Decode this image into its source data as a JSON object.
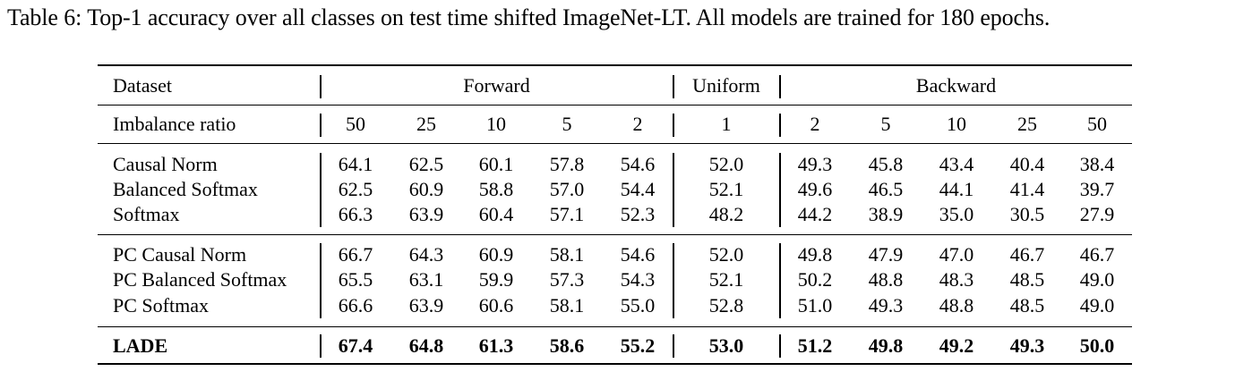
{
  "caption": "Table 6: Top-1 accuracy over all classes on test time shifted ImageNet-LT. All models are trained for 180 epochs.",
  "header": {
    "dataset_label": "Dataset",
    "groups": [
      "Forward",
      "Uniform",
      "Backward"
    ],
    "imbalance_label": "Imbalance ratio",
    "ratios": [
      "50",
      "25",
      "10",
      "5",
      "2",
      "1",
      "2",
      "5",
      "10",
      "25",
      "50"
    ]
  },
  "rows": [
    {
      "name": "Causal Norm",
      "values": [
        "64.1",
        "62.5",
        "60.1",
        "57.8",
        "54.6",
        "52.0",
        "49.3",
        "45.8",
        "43.4",
        "40.4",
        "38.4"
      ]
    },
    {
      "name": "Balanced Softmax",
      "values": [
        "62.5",
        "60.9",
        "58.8",
        "57.0",
        "54.4",
        "52.1",
        "49.6",
        "46.5",
        "44.1",
        "41.4",
        "39.7"
      ]
    },
    {
      "name": "Softmax",
      "values": [
        "66.3",
        "63.9",
        "60.4",
        "57.1",
        "52.3",
        "48.2",
        "44.2",
        "38.9",
        "35.0",
        "30.5",
        "27.9"
      ]
    },
    {
      "name": "PC Causal Norm",
      "values": [
        "66.7",
        "64.3",
        "60.9",
        "58.1",
        "54.6",
        "52.0",
        "49.8",
        "47.9",
        "47.0",
        "46.7",
        "46.7"
      ]
    },
    {
      "name": "PC Balanced Softmax",
      "values": [
        "65.5",
        "63.1",
        "59.9",
        "57.3",
        "54.3",
        "52.1",
        "50.2",
        "48.8",
        "48.3",
        "48.5",
        "49.0"
      ]
    },
    {
      "name": "PC Softmax",
      "values": [
        "66.6",
        "63.9",
        "60.6",
        "58.1",
        "55.0",
        "52.8",
        "51.0",
        "49.3",
        "48.8",
        "48.5",
        "49.0"
      ]
    },
    {
      "name": "LADE",
      "values": [
        "67.4",
        "64.8",
        "61.3",
        "58.6",
        "55.2",
        "53.0",
        "51.2",
        "49.8",
        "49.2",
        "49.3",
        "50.0"
      ]
    }
  ]
}
